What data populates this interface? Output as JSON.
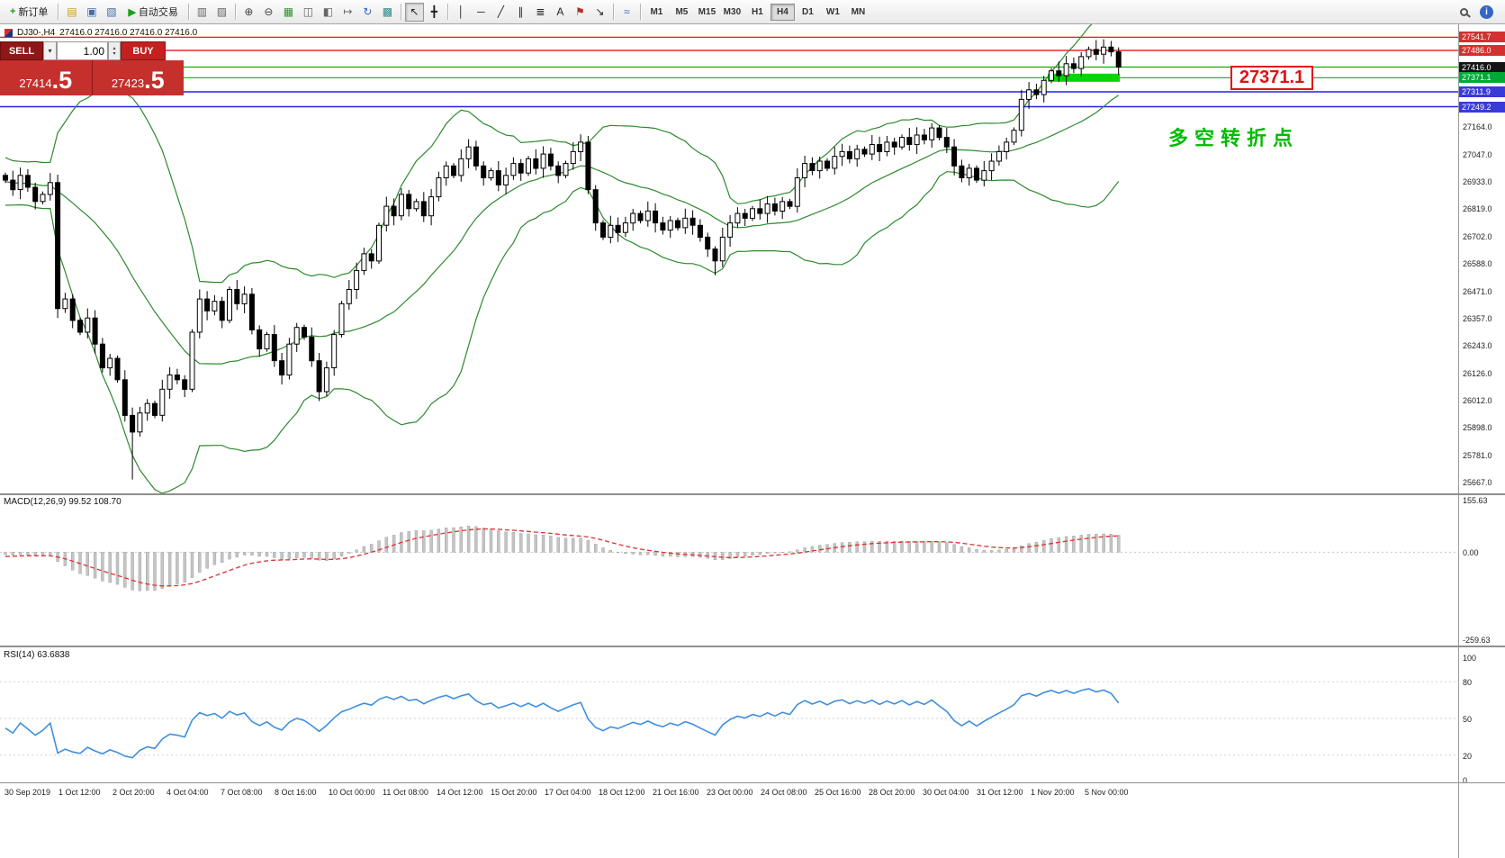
{
  "toolbar": {
    "items": [
      {
        "type": "button",
        "name": "new-order-button",
        "glyph": "+",
        "glyph_color": "#17a017",
        "label": "新订单"
      },
      {
        "type": "sep"
      },
      {
        "type": "icon",
        "name": "market-watch-icon",
        "glyph": "▤",
        "color": "#c89a28"
      },
      {
        "type": "icon",
        "name": "data-window-icon",
        "glyph": "▣",
        "color": "#446ea8"
      },
      {
        "type": "icon",
        "name": "navigator-icon",
        "glyph": "▧",
        "color": "#446ea8"
      },
      {
        "type": "button",
        "name": "auto-trading-button",
        "glyph": "▶",
        "glyph_color": "#17a017",
        "label": "自动交易"
      },
      {
        "type": "sep"
      },
      {
        "type": "icon",
        "name": "new-chart-icon",
        "glyph": "▥",
        "color": "#666666"
      },
      {
        "type": "icon",
        "name": "profiles-icon",
        "glyph": "▨",
        "color": "#666666"
      },
      {
        "type": "sep"
      },
      {
        "type": "icon",
        "name": "zoom-in-icon",
        "glyph": "⊕",
        "color": "#444444"
      },
      {
        "type": "icon",
        "name": "zoom-out-icon",
        "glyph": "⊖",
        "color": "#444444"
      },
      {
        "type": "icon",
        "name": "grid-icon",
        "glyph": "▦",
        "color": "#2f8f2f"
      },
      {
        "type": "icon",
        "name": "tile-windows-icon",
        "glyph": "◫",
        "color": "#666666"
      },
      {
        "type": "icon",
        "name": "cascade-windows-icon",
        "glyph": "◧",
        "color": "#666666"
      },
      {
        "type": "icon",
        "name": "chart-shift-icon",
        "glyph": "↦",
        "color": "#666666"
      },
      {
        "type": "icon",
        "name": "auto-scroll-icon",
        "glyph": "↻",
        "color": "#3565c5"
      },
      {
        "type": "icon",
        "name": "templates-icon",
        "glyph": "▩",
        "color": "#2e8b8b"
      },
      {
        "type": "sep"
      },
      {
        "type": "icon",
        "name": "cursor-icon",
        "glyph": "↖",
        "color": "#222222",
        "active": true
      },
      {
        "type": "icon",
        "name": "crosshair-icon",
        "glyph": "╋",
        "color": "#222222"
      },
      {
        "type": "sep"
      },
      {
        "type": "icon",
        "name": "vertical-line-icon",
        "glyph": "│",
        "color": "#222222"
      },
      {
        "type": "icon",
        "name": "horizontal-line-icon",
        "glyph": "─",
        "color": "#222222"
      },
      {
        "type": "icon",
        "name": "trendline-icon",
        "glyph": "╱",
        "color": "#222222"
      },
      {
        "type": "icon",
        "name": "channel-icon",
        "glyph": "∥",
        "color": "#222222"
      },
      {
        "type": "icon",
        "name": "fibonacci-icon",
        "glyph": "≣",
        "color": "#222222"
      },
      {
        "type": "icon",
        "name": "text-icon",
        "glyph": "A",
        "color": "#222222"
      },
      {
        "type": "icon",
        "name": "label-icon",
        "glyph": "⚑",
        "color": "#b03030"
      },
      {
        "type": "icon",
        "name": "arrows-icon",
        "glyph": "↘",
        "color": "#222222"
      },
      {
        "type": "sep"
      },
      {
        "type": "icon",
        "name": "indicators-icon",
        "glyph": "≈",
        "color": "#3565c5"
      },
      {
        "type": "sep"
      }
    ],
    "timeframes": [
      "M1",
      "M5",
      "M15",
      "M30",
      "H1",
      "H4",
      "D1",
      "W1",
      "MN"
    ],
    "active_timeframe": "H4",
    "right_icons": [
      {
        "name": "search-icon"
      },
      {
        "name": "help-icon",
        "glyph": "i"
      }
    ]
  },
  "trade_panel": {
    "sell_label": "SELL",
    "buy_label": "BUY",
    "volume": "1.00",
    "sell_price": "27414",
    "sell_price_frac": ".5",
    "buy_price": "27423",
    "buy_price_frac": ".5"
  },
  "chart": {
    "header_symbol": "DJ30-,H4",
    "header_ohlc": "27416.0 27416.0 27416.0 27416.0",
    "annotation": "多空转折点",
    "annotation_color": "#00bb00",
    "callout_price": "27371.1",
    "highlight_bar_color": "#00d800",
    "levels": [
      {
        "label": "27541.7",
        "price": 27541.7,
        "line_color": "#e00000",
        "label_bg": "#d43030"
      },
      {
        "label": "27486.0",
        "price": 27486.0,
        "line_color": "#e00000",
        "label_bg": "#d43030"
      },
      {
        "label": "27416.0",
        "price": 27416.0,
        "line_color": "#00b400",
        "label_bg": "#141414"
      },
      {
        "label": "27371.1",
        "price": 27371.1,
        "line_color": "#00b400",
        "label_bg": "#00a838"
      },
      {
        "label": "27311.9",
        "price": 27311.9,
        "line_color": "#2222dd",
        "label_bg": "#3a3ad8"
      },
      {
        "label": "27249.2",
        "price": 27249.2,
        "line_color": "#2222dd",
        "label_bg": "#3a3ad8"
      }
    ],
    "y_axis": [
      "27164.0",
      "27047.0",
      "26933.0",
      "26819.0",
      "26702.0",
      "26588.0",
      "26471.0",
      "26357.0",
      "26243.0",
      "26126.0",
      "26012.0",
      "25898.0",
      "25781.0",
      "25667.0"
    ]
  },
  "macd": {
    "label": "MACD(12,26,9) 99.52 108.70",
    "scale": [
      {
        "text": "155.63",
        "value": 155.63
      },
      {
        "text": "0.00",
        "value": 0
      },
      {
        "text": "-259.63",
        "value": -259.63
      }
    ]
  },
  "rsi": {
    "label": "RSI(14) 63.6838",
    "scale": [
      {
        "text": "100",
        "value": 100
      },
      {
        "text": "80",
        "value": 80
      },
      {
        "text": "50",
        "value": 50
      },
      {
        "text": "20",
        "value": 20
      },
      {
        "text": "0",
        "value": 0
      }
    ]
  },
  "time_axis": [
    "30 Sep 2019",
    "1 Oct 12:00",
    "2 Oct 20:00",
    "4 Oct 04:00",
    "7 Oct 08:00",
    "8 Oct 16:00",
    "10 Oct 00:00",
    "11 Oct 08:00",
    "14 Oct 12:00",
    "15 Oct 20:00",
    "17 Oct 04:00",
    "18 Oct 12:00",
    "21 Oct 16:00",
    "23 Oct 00:00",
    "24 Oct 08:00",
    "25 Oct 16:00",
    "28 Oct 20:00",
    "30 Oct 04:00",
    "31 Oct 12:00",
    "1 Nov 20:00",
    "5 Nov 00:00"
  ],
  "chart_data": {
    "type": "candlestick",
    "symbol": "DJ30-",
    "period": "H4",
    "price_axis_range": [
      25625,
      27596
    ],
    "indicators": {
      "bollinger_period": 20,
      "bollinger_dev": 2,
      "macd": [
        12,
        26,
        9
      ],
      "rsi_period": 14
    },
    "wick_low_overrides": {
      "17": 25680,
      "95": 26540
    },
    "closes": [
      26940,
      26900,
      26960,
      26910,
      26850,
      26880,
      26930,
      26400,
      26440,
      26350,
      26300,
      26360,
      26250,
      26150,
      26190,
      26100,
      25950,
      25880,
      25960,
      26000,
      25950,
      26060,
      26120,
      26100,
      26060,
      26300,
      26440,
      26390,
      26430,
      26350,
      26480,
      26420,
      26460,
      26310,
      26230,
      26290,
      26180,
      26120,
      26250,
      26320,
      26280,
      26180,
      26050,
      26150,
      26290,
      26420,
      26480,
      26560,
      26630,
      26600,
      26750,
      26830,
      26790,
      26880,
      26820,
      26850,
      26790,
      26870,
      26950,
      27000,
      26960,
      27030,
      27080,
      27000,
      26950,
      26980,
      26920,
      26960,
      27010,
      26970,
      27030,
      26990,
      27050,
      27000,
      26960,
      27010,
      27060,
      27100,
      26900,
      26760,
      26700,
      26750,
      26720,
      26760,
      26800,
      26770,
      26810,
      26760,
      26730,
      26770,
      26740,
      26780,
      26750,
      26700,
      26650,
      26600,
      26700,
      26760,
      26800,
      26780,
      26820,
      26800,
      26840,
      26810,
      26850,
      26830,
      26950,
      27010,
      26980,
      27020,
      26990,
      27040,
      27060,
      27030,
      27070,
      27050,
      27090,
      27060,
      27100,
      27080,
      27120,
      27090,
      27130,
      27110,
      27160,
      27120,
      27080,
      27000,
      26950,
      26990,
      26940,
      26980,
      27020,
      27060,
      27100,
      27150,
      27280,
      27320,
      27300,
      27360,
      27400,
      27380,
      27430,
      27410,
      27460,
      27490,
      27470,
      27500,
      27480,
      27416
    ]
  }
}
